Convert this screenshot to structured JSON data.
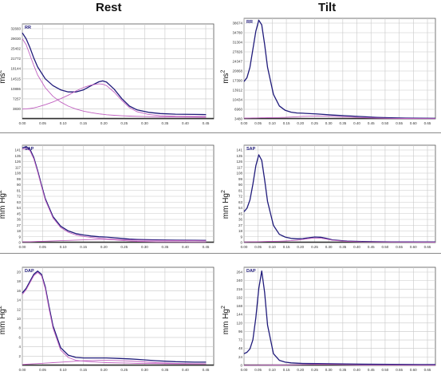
{
  "columns": {
    "left": "Rest",
    "right": "Tilt"
  },
  "colors": {
    "grid": "#c8c8c8",
    "series_main": "#1f1a7a",
    "series_component": "#c060c0",
    "axis": "#555555",
    "baseline": "#303030"
  },
  "ylabels": {
    "rr": {
      "text": "ms",
      "sup": "2"
    },
    "sap": {
      "text": "mm Hg",
      "sup": "2"
    },
    "dap": {
      "text": "mm Hg",
      "sup": "2"
    }
  },
  "chart_data": [
    {
      "type": "line",
      "title": "RR",
      "column": "Rest",
      "xlim": [
        0,
        0.5
      ],
      "ylim": [
        0,
        32000
      ],
      "x_ticks": [
        "0.00",
        "0.05",
        "0.10",
        "0.15",
        "0.20",
        "0.25",
        "0.30",
        "0.35",
        "0.40",
        "0.45"
      ],
      "y_ticks": [
        "3830",
        "7257",
        "10886",
        "14515",
        "18144",
        "21772",
        "25402",
        "29030",
        "32660"
      ],
      "x": [
        0,
        0.01,
        0.02,
        0.03,
        0.04,
        0.06,
        0.08,
        0.1,
        0.12,
        0.14,
        0.16,
        0.18,
        0.2,
        0.21,
        0.22,
        0.24,
        0.26,
        0.28,
        0.3,
        0.33,
        0.36,
        0.4,
        0.45,
        0.48
      ],
      "series": [
        {
          "values": [
            29000,
            27000,
            24000,
            20500,
            17500,
            13500,
            11200,
            9800,
            9100,
            9100,
            9800,
            11200,
            12500,
            12800,
            12400,
            10000,
            6800,
            4300,
            3000,
            2200,
            1800,
            1600,
            1500,
            1450
          ]
        },
        {
          "values": [
            27000,
            25000,
            21500,
            18000,
            14800,
            10500,
            7600,
            5700,
            4300,
            3300,
            2600,
            2100,
            1700,
            1550,
            1400,
            1200,
            1050,
            950,
            850,
            750,
            680,
            620,
            580,
            560
          ]
        },
        {
          "values": [
            3300,
            3400,
            3500,
            3700,
            4000,
            4800,
            5700,
            6800,
            8000,
            9400,
            10600,
            11400,
            11800,
            11700,
            11200,
            9000,
            6200,
            3800,
            2400,
            1500,
            1100,
            900,
            800,
            780
          ]
        }
      ]
    },
    {
      "type": "line",
      "title": "RR",
      "column": "Tilt",
      "xlim": [
        0,
        0.65
      ],
      "ylim": [
        0,
        39000
      ],
      "x_ticks": [
        "0.00",
        "0.05",
        "0.10",
        "0.15",
        "0.20",
        "0.25",
        "0.30",
        "0.35",
        "0.40",
        "0.45",
        "0.50",
        "0.55",
        "0.60",
        "0.65"
      ],
      "y_ticks": [
        "3480",
        "6960",
        "10434",
        "13912",
        "17390",
        "20868",
        "24347",
        "27826",
        "31304",
        "34780",
        "38674"
      ],
      "x": [
        0,
        0.01,
        0.02,
        0.03,
        0.04,
        0.05,
        0.06,
        0.07,
        0.08,
        0.1,
        0.12,
        0.14,
        0.16,
        0.18,
        0.2,
        0.25,
        0.3,
        0.35,
        0.4,
        0.45,
        0.5,
        0.55,
        0.6,
        0.65
      ],
      "series": [
        {
          "values": [
            14500,
            16000,
            20000,
            27000,
            34000,
            38300,
            36500,
            29000,
            20000,
            9500,
            5000,
            3300,
            2600,
            2300,
            2200,
            1900,
            1500,
            1200,
            900,
            600,
            400,
            300,
            250,
            200
          ]
        },
        {
          "values": [
            300,
            320,
            340,
            360,
            380,
            400,
            420,
            440,
            460,
            500,
            540,
            600,
            700,
            850,
            1000,
            1150,
            1000,
            750,
            500,
            300,
            200,
            150,
            120,
            100
          ]
        }
      ]
    },
    {
      "type": "line",
      "title": "SAP",
      "column": "Rest",
      "xlim": [
        0,
        0.5
      ],
      "ylim": [
        0,
        142
      ],
      "x_ticks": [
        "0.00",
        "0.05",
        "0.10",
        "0.15",
        "0.20",
        "0.25",
        "0.30",
        "0.35",
        "0.40",
        "0.45"
      ],
      "y_ticks": [
        "0",
        "9",
        "18",
        "27",
        "36",
        "45",
        "54",
        "63",
        "72",
        "81",
        "90",
        "99",
        "108",
        "117",
        "126",
        "135",
        "141"
      ],
      "x": [
        0,
        0.01,
        0.02,
        0.03,
        0.04,
        0.05,
        0.06,
        0.08,
        0.1,
        0.12,
        0.14,
        0.16,
        0.18,
        0.2,
        0.22,
        0.24,
        0.26,
        0.28,
        0.3,
        0.35,
        0.4,
        0.45,
        0.48
      ],
      "series": [
        {
          "values": [
            138,
            140,
            136,
            124,
            105,
            84,
            64,
            38,
            24,
            17,
            13,
            11,
            9.5,
            8.5,
            8,
            7,
            6,
            5,
            4.5,
            4,
            3.5,
            3.3,
            3.2
          ]
        },
        {
          "values": [
            136,
            138,
            134,
            122,
            103,
            82,
            62,
            36,
            22,
            15,
            11,
            9,
            7.5,
            6.5,
            5.5,
            4.8,
            4.2,
            3.8,
            3.5,
            3.1,
            2.9,
            2.8,
            2.7
          ]
        },
        {
          "values": [
            1,
            1.1,
            1.2,
            1.4,
            1.6,
            1.8,
            2,
            2.4,
            2.8,
            3.2,
            3.6,
            4,
            4.4,
            4.6,
            4.5,
            4,
            3.2,
            2.4,
            1.8,
            1.2,
            1,
            0.9,
            0.9
          ]
        }
      ]
    },
    {
      "type": "line",
      "title": "SAP",
      "column": "Tilt",
      "xlim": [
        0,
        0.65
      ],
      "ylim": [
        0,
        142
      ],
      "x_ticks": [
        "0.00",
        "0.05",
        "0.10",
        "0.15",
        "0.20",
        "0.25",
        "0.30",
        "0.35",
        "0.40",
        "0.45",
        "0.50",
        "0.55",
        "0.60",
        "0.65"
      ],
      "y_ticks": [
        "0",
        "9",
        "18",
        "27",
        "36",
        "45",
        "54",
        "63",
        "72",
        "81",
        "90",
        "99",
        "108",
        "117",
        "126",
        "135",
        "141"
      ],
      "x": [
        0,
        0.01,
        0.02,
        0.03,
        0.04,
        0.05,
        0.06,
        0.07,
        0.08,
        0.1,
        0.12,
        0.14,
        0.16,
        0.18,
        0.2,
        0.22,
        0.24,
        0.26,
        0.28,
        0.3,
        0.35,
        0.4,
        0.5,
        0.6,
        0.65
      ],
      "series": [
        {
          "values": [
            45,
            50,
            62,
            85,
            112,
            128,
            120,
            92,
            60,
            25,
            12,
            8,
            6,
            5.5,
            5.8,
            7,
            8.2,
            7.8,
            6,
            4,
            2.2,
            1.5,
            1,
            0.8,
            0.8
          ]
        },
        {
          "values": [
            0.8,
            0.9,
            1,
            1.1,
            1.2,
            1.3,
            1.4,
            1.5,
            1.6,
            1.8,
            2,
            2.3,
            2.8,
            3.5,
            4.5,
            5.8,
            6.6,
            6.3,
            5,
            3.4,
            1.8,
            1.1,
            0.8,
            0.7,
            0.7
          ]
        }
      ]
    },
    {
      "type": "line",
      "title": "DAP",
      "column": "Rest",
      "xlim": [
        0,
        0.5
      ],
      "ylim": [
        0,
        21
      ],
      "x_ticks": [
        "0.00",
        "0.05",
        "0.10",
        "0.15",
        "0.20",
        "0.25",
        "0.30",
        "0.35",
        "0.40",
        "0.45"
      ],
      "y_ticks": [
        "2",
        "4",
        "6",
        "8",
        "10",
        "12",
        "14",
        "16",
        "18",
        "20"
      ],
      "x": [
        0,
        0.01,
        0.02,
        0.03,
        0.04,
        0.05,
        0.06,
        0.07,
        0.08,
        0.1,
        0.12,
        0.14,
        0.16,
        0.18,
        0.2,
        0.22,
        0.25,
        0.28,
        0.3,
        0.35,
        0.4,
        0.45,
        0.48
      ],
      "series": [
        {
          "values": [
            15.5,
            16.5,
            18,
            19.5,
            20.2,
            19.5,
            16.8,
            12.5,
            8.5,
            3.8,
            2.2,
            1.7,
            1.6,
            1.6,
            1.6,
            1.6,
            1.5,
            1.4,
            1.3,
            1,
            0.8,
            0.7,
            0.7
          ]
        },
        {
          "values": [
            15.2,
            16.2,
            17.7,
            19.2,
            19.9,
            19.2,
            16.4,
            12,
            8,
            3.3,
            1.7,
            1.1,
            0.9,
            0.8,
            0.7,
            0.6,
            0.55,
            0.5,
            0.45,
            0.4,
            0.35,
            0.3,
            0.3
          ]
        },
        {
          "values": [
            0.2,
            0.25,
            0.3,
            0.35,
            0.4,
            0.45,
            0.5,
            0.55,
            0.6,
            0.7,
            0.8,
            0.9,
            1,
            1.05,
            1.1,
            1.1,
            1.05,
            0.95,
            0.85,
            0.6,
            0.45,
            0.38,
            0.36
          ]
        }
      ]
    },
    {
      "type": "line",
      "title": "DAP",
      "column": "Tilt",
      "xlim": [
        0,
        0.65
      ],
      "ylim": [
        0,
        268
      ],
      "x_ticks": [
        "0.00",
        "0.05",
        "0.10",
        "0.15",
        "0.20",
        "0.25",
        "0.30",
        "0.35",
        "0.40",
        "0.45",
        "0.50",
        "0.55",
        "0.60",
        "0.65"
      ],
      "y_ticks": [
        "0",
        "24",
        "48",
        "72",
        "96",
        "120",
        "144",
        "168",
        "192",
        "216",
        "240",
        "264"
      ],
      "x": [
        0,
        0.01,
        0.02,
        0.03,
        0.04,
        0.05,
        0.06,
        0.07,
        0.08,
        0.1,
        0.12,
        0.14,
        0.16,
        0.18,
        0.2,
        0.25,
        0.3,
        0.35,
        0.4,
        0.5,
        0.6,
        0.65
      ],
      "series": [
        {
          "values": [
            32,
            36,
            45,
            70,
            130,
            210,
            258,
            200,
            110,
            32,
            14,
            9,
            7,
            6,
            5.5,
            5,
            4.5,
            4,
            3.5,
            3,
            2.5,
            2.5
          ]
        },
        {
          "values": [
            0.5,
            0.5,
            0.6,
            0.6,
            0.7,
            0.7,
            0.8,
            0.8,
            0.9,
            1,
            1.1,
            1.3,
            1.6,
            2,
            2.6,
            3.2,
            2.8,
            2,
            1.4,
            0.9,
            0.7,
            0.7
          ]
        }
      ]
    }
  ]
}
